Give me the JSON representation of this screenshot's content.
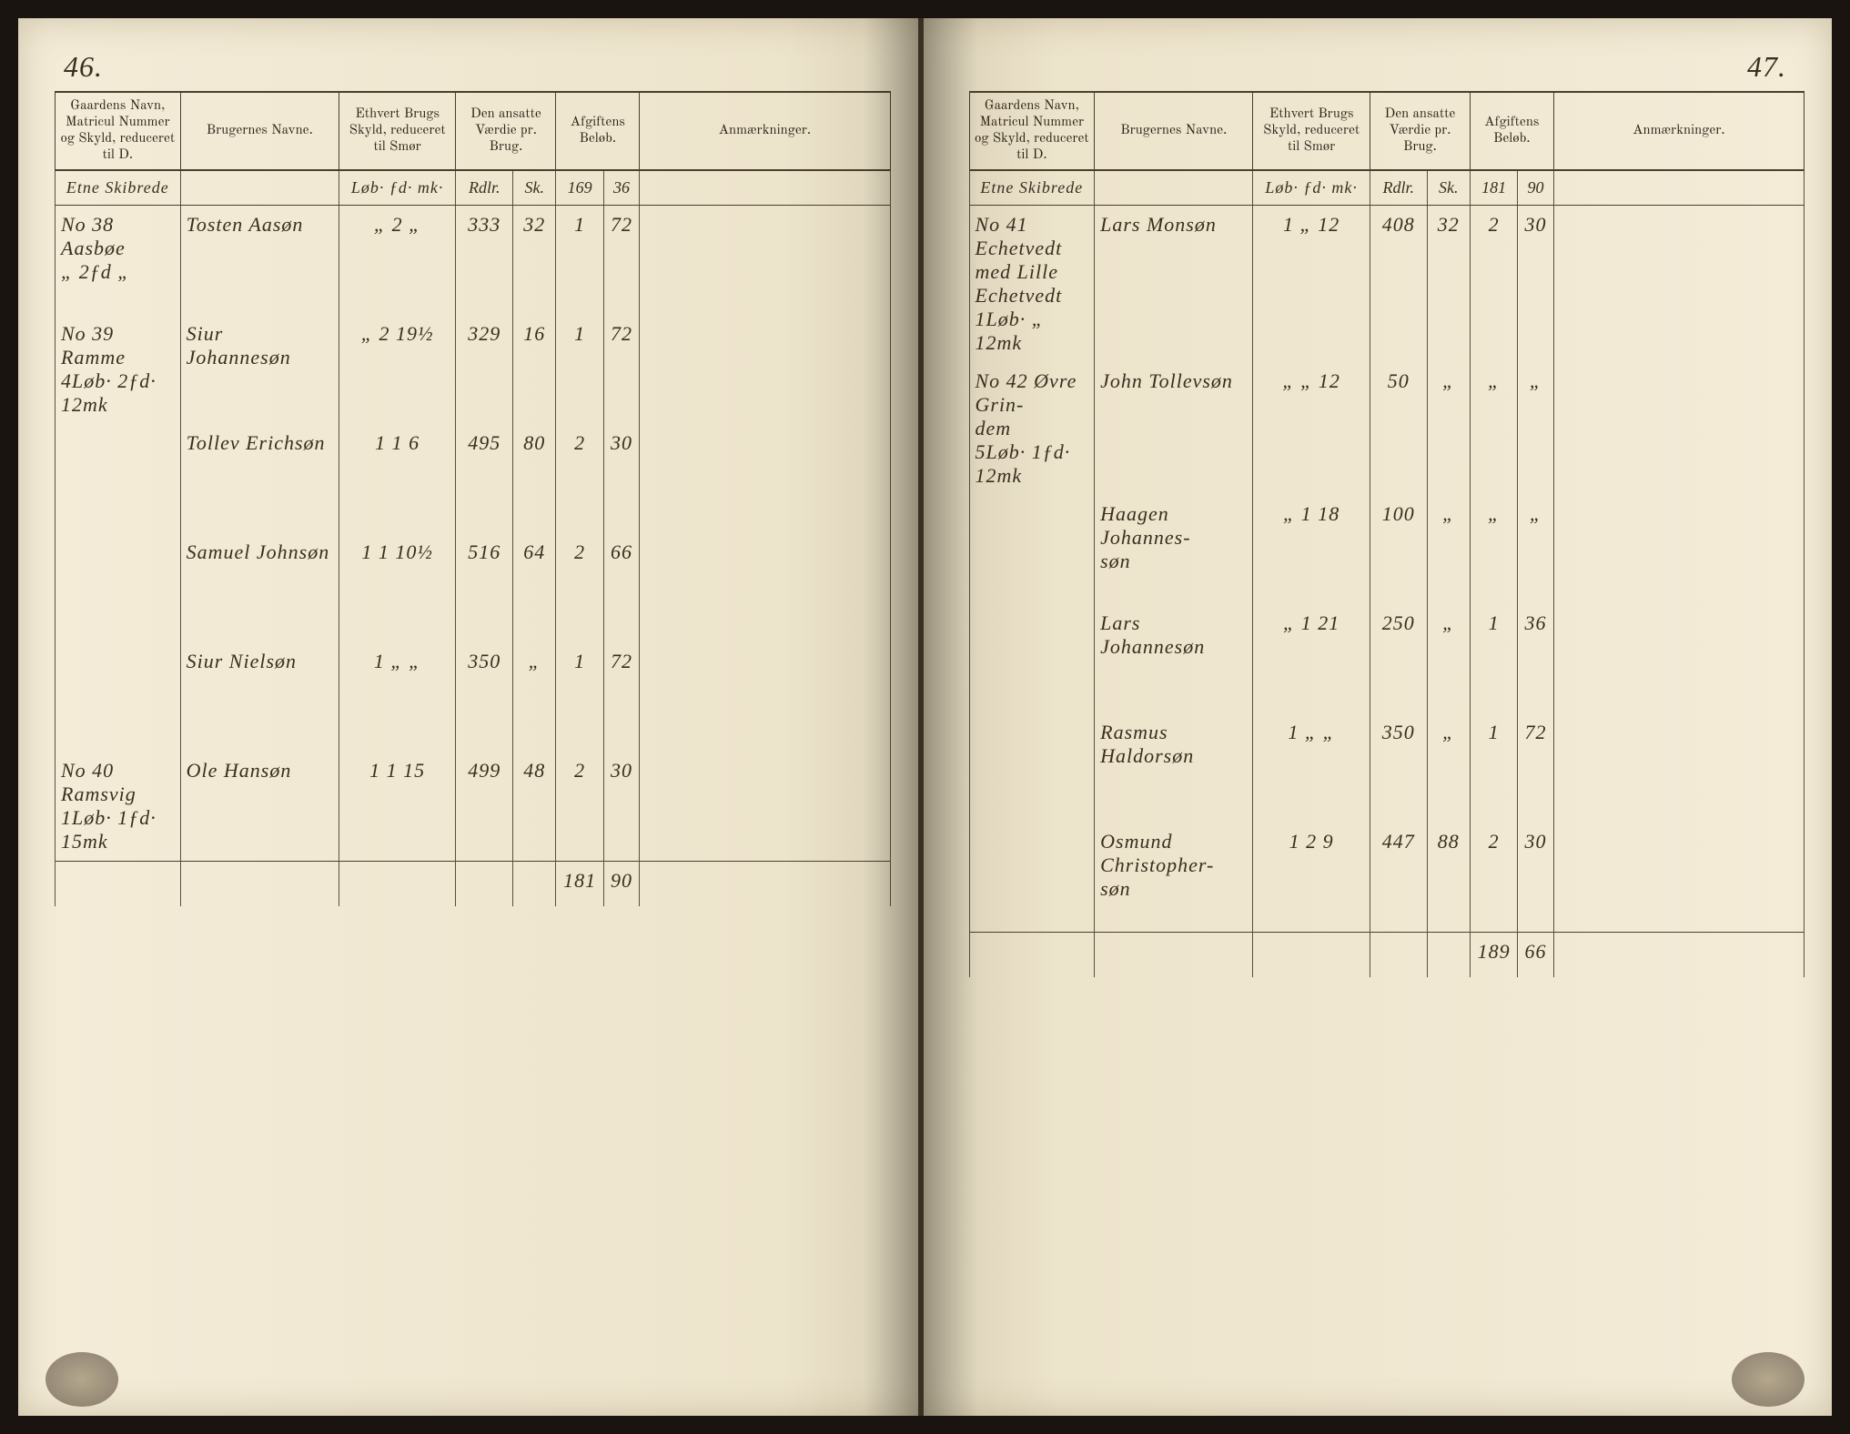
{
  "page_left_number": "46.",
  "page_right_number": "47.",
  "headers": {
    "gaard": "Gaardens Navn, Matricul Nummer og Skyld, reduceret til D.",
    "bruger": "Brugernes Navne.",
    "skyld": "Ethvert Brugs Skyld, reduceret til Smør",
    "vaerdie": "Den ansatte Værdie pr. Brug.",
    "afgift": "Afgiftens Beløb.",
    "anm": "Anmærkninger."
  },
  "subheaders": {
    "skyld_units": "Løb· ƒd· mk·",
    "vaerdie_rdlr": "Rdlr.",
    "vaerdie_sk": "Sk.",
    "afgift_rdlr": "Rdlr.",
    "afgift_sk": "Sk."
  },
  "left": {
    "parish": "Etne Skibrede",
    "carry_afgift_rdlr": "169",
    "carry_afgift_sk": "36",
    "rows": [
      {
        "gaard": "No 38 Aasbøe\n„ 2ƒd „",
        "bruger": "Tosten Aasøn",
        "skyld": "„ 2 „",
        "v_rdlr": "333",
        "v_sk": "32",
        "a_rdlr": "1",
        "a_sk": "72"
      },
      {
        "gaard": "No 39 Ramme\n4Løb· 2ƒd· 12mk",
        "bruger": "Siur Johannesøn",
        "skyld": "„ 2 19½",
        "v_rdlr": "329",
        "v_sk": "16",
        "a_rdlr": "1",
        "a_sk": "72"
      },
      {
        "gaard": "",
        "bruger": "Tollev Erichsøn",
        "skyld": "1 1 6",
        "v_rdlr": "495",
        "v_sk": "80",
        "a_rdlr": "2",
        "a_sk": "30"
      },
      {
        "gaard": "",
        "bruger": "Samuel Johnsøn",
        "skyld": "1 1 10½",
        "v_rdlr": "516",
        "v_sk": "64",
        "a_rdlr": "2",
        "a_sk": "66"
      },
      {
        "gaard": "",
        "bruger": "Siur Nielsøn",
        "skyld": "1 „ „",
        "v_rdlr": "350",
        "v_sk": "„",
        "a_rdlr": "1",
        "a_sk": "72"
      },
      {
        "gaard": "No 40 Ramsvig\n1Løb· 1ƒd· 15mk",
        "bruger": "Ole Hansøn",
        "skyld": "1 1 15",
        "v_rdlr": "499",
        "v_sk": "48",
        "a_rdlr": "2",
        "a_sk": "30"
      }
    ],
    "total_rdlr": "181",
    "total_sk": "90"
  },
  "right": {
    "parish": "Etne Skibrede",
    "carry_afgift_rdlr": "181",
    "carry_afgift_sk": "90",
    "rows": [
      {
        "gaard": "No 41 Echetvedt\nmed Lille Echetvedt\n1Løb· „ 12mk",
        "bruger": "Lars Monsøn",
        "skyld": "1 „ 12",
        "v_rdlr": "408",
        "v_sk": "32",
        "a_rdlr": "2",
        "a_sk": "30"
      },
      {
        "gaard": "No 42 Øvre Grin-\ndem\n5Løb· 1ƒd· 12mk",
        "bruger": "John Tollevsøn",
        "skyld": "„ „ 12",
        "v_rdlr": "50",
        "v_sk": "„",
        "a_rdlr": "„",
        "a_sk": "„"
      },
      {
        "gaard": "",
        "bruger": "Haagen Johannes-\nsøn",
        "skyld": "„ 1 18",
        "v_rdlr": "100",
        "v_sk": "„",
        "a_rdlr": "„",
        "a_sk": "„"
      },
      {
        "gaard": "",
        "bruger": "Lars Johannesøn",
        "skyld": "„ 1 21",
        "v_rdlr": "250",
        "v_sk": "„",
        "a_rdlr": "1",
        "a_sk": "36"
      },
      {
        "gaard": "",
        "bruger": "Rasmus Haldorsøn",
        "skyld": "1 „ „",
        "v_rdlr": "350",
        "v_sk": "„",
        "a_rdlr": "1",
        "a_sk": "72"
      },
      {
        "gaard": "",
        "bruger": "Osmund Christopher-\nsøn",
        "skyld": "1 2 9",
        "v_rdlr": "447",
        "v_sk": "88",
        "a_rdlr": "2",
        "a_sk": "30"
      }
    ],
    "total_rdlr": "189",
    "total_sk": "66"
  },
  "colors": {
    "paper": "#f4ecd8",
    "ink": "#3a2f1f",
    "rule": "#4a3f2f",
    "background": "#1a1410"
  }
}
